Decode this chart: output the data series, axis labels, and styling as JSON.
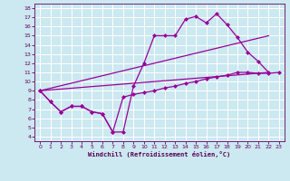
{
  "xlabel": "Windchill (Refroidissement éolien,°C)",
  "bg_color": "#cce8f0",
  "line_color": "#990099",
  "markersize": 2.5,
  "linewidth": 0.9,
  "xlim": [
    -0.5,
    23.5
  ],
  "ylim": [
    3.5,
    18.5
  ],
  "xticks": [
    0,
    1,
    2,
    3,
    4,
    5,
    6,
    7,
    8,
    9,
    10,
    11,
    12,
    13,
    14,
    15,
    16,
    17,
    18,
    19,
    20,
    21,
    22,
    23
  ],
  "yticks": [
    4,
    5,
    6,
    7,
    8,
    9,
    10,
    11,
    12,
    13,
    14,
    15,
    16,
    17,
    18
  ],
  "line1_x": [
    0,
    1,
    2,
    3,
    4,
    5,
    6,
    7,
    8,
    9,
    10,
    11,
    12,
    13,
    14,
    15,
    16,
    17,
    18,
    19,
    20,
    21,
    22
  ],
  "line1_y": [
    9.0,
    7.8,
    6.7,
    7.3,
    7.3,
    6.7,
    6.5,
    4.5,
    4.5,
    9.5,
    12.0,
    15.0,
    15.0,
    15.0,
    16.8,
    17.1,
    16.4,
    17.4,
    16.2,
    14.8,
    13.2,
    12.2,
    11.0
  ],
  "line2_x": [
    0,
    1,
    2,
    3,
    4,
    5,
    6,
    7,
    8,
    9,
    10,
    11,
    12,
    13,
    14,
    15,
    16,
    17,
    18,
    19,
    20,
    21,
    22,
    23
  ],
  "line2_y": [
    9.0,
    7.8,
    6.7,
    7.3,
    7.3,
    6.7,
    6.5,
    4.5,
    8.3,
    8.6,
    8.8,
    9.0,
    9.3,
    9.5,
    9.8,
    10.0,
    10.3,
    10.5,
    10.7,
    11.0,
    11.0,
    10.9,
    10.9,
    11.0
  ],
  "line3_x": [
    0,
    22
  ],
  "line3_y": [
    9.0,
    11.0
  ],
  "line4_x": [
    0,
    22
  ],
  "line4_y": [
    9.0,
    15.0
  ]
}
